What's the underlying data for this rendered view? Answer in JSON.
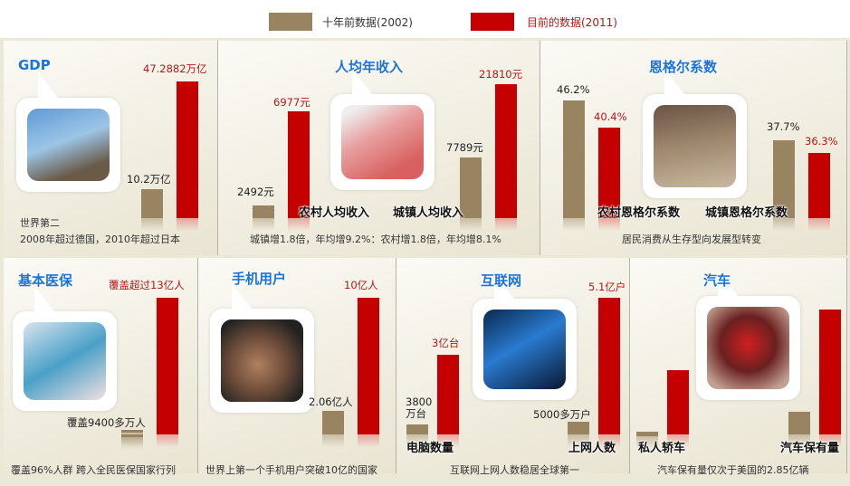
{
  "legend": {
    "before": "十年前数据(2002)",
    "now": "目前的数据(2011)",
    "colors": {
      "before": "#998462",
      "now": "#c40000"
    }
  },
  "chart_data": [
    {
      "type": "bar",
      "title": "GDP",
      "categories": [
        ""
      ],
      "series": [
        {
          "name": "十年前数据(2002)",
          "values": [
            10.2
          ],
          "labels": [
            "10.2万亿"
          ]
        },
        {
          "name": "目前的数据(2011)",
          "values": [
            47.2882
          ],
          "labels": [
            "47.2882万亿"
          ]
        }
      ],
      "caption": [
        "世界第二",
        "2008年超过德国，2010年超过日本"
      ]
    },
    {
      "type": "bar",
      "title": "人均年收入",
      "categories": [
        "农村人均收入",
        "城镇人均收入"
      ],
      "series": [
        {
          "name": "十年前数据(2002)",
          "values": [
            2492,
            7789
          ],
          "labels": [
            "2492元",
            "7789元"
          ]
        },
        {
          "name": "目前的数据(2011)",
          "values": [
            6977,
            21810
          ],
          "labels": [
            "6977元",
            "21810元"
          ]
        }
      ],
      "caption": [
        "城镇增1.8倍，年均增9.2%：农村增1.8倍，年均增8.1%"
      ]
    },
    {
      "type": "bar",
      "title": "恩格尔系数",
      "categories": [
        "农村恩格尔系数",
        "城镇恩格尔系数"
      ],
      "series": [
        {
          "name": "十年前数据(2002)",
          "values": [
            46.2,
            37.7
          ],
          "labels": [
            "46.2%",
            "37.7%"
          ]
        },
        {
          "name": "目前的数据(2011)",
          "values": [
            40.4,
            36.3
          ],
          "labels": [
            "40.4%",
            "36.3%"
          ]
        }
      ],
      "caption": [
        "居民消费从生存型向发展型转变"
      ]
    },
    {
      "type": "bar",
      "title": "基本医保",
      "categories": [
        ""
      ],
      "series": [
        {
          "name": "十年前数据(2002)",
          "values": [
            0.94
          ],
          "labels": [
            "覆盖9400多万人"
          ]
        },
        {
          "name": "目前的数据(2011)",
          "values": [
            13
          ],
          "labels": [
            "覆盖超过13亿人"
          ]
        }
      ],
      "caption": [
        "覆盖96%人群 跨入全民医保国家行列"
      ]
    },
    {
      "type": "bar",
      "title": "手机用户",
      "categories": [
        ""
      ],
      "series": [
        {
          "name": "十年前数据(2002)",
          "values": [
            2.06
          ],
          "labels": [
            "2.06亿人"
          ]
        },
        {
          "name": "目前的数据(2011)",
          "values": [
            10
          ],
          "labels": [
            "10亿人"
          ]
        }
      ],
      "caption": [
        "世界上第一个手机用户突破10亿的国家"
      ]
    },
    {
      "type": "bar",
      "title": "互联网",
      "categories": [
        "电脑数量",
        "上网人数"
      ],
      "series": [
        {
          "name": "十年前数据(2002)",
          "values": [
            0.38,
            0.5
          ],
          "labels": [
            "3800万台",
            "5000多万户"
          ]
        },
        {
          "name": "目前的数据(2011)",
          "values": [
            3,
            5.1
          ],
          "labels": [
            "3亿台",
            "5.1亿户"
          ]
        }
      ],
      "caption": [
        "互联网上网人数稳居全球第一"
      ]
    },
    {
      "type": "bar",
      "title": "汽车",
      "categories": [
        "私人轿车",
        "汽车保有量"
      ],
      "series": [
        {
          "name": "十年前数据(2002)",
          "values": [
            null,
            null
          ],
          "labels": [
            "",
            ""
          ]
        },
        {
          "name": "目前的数据(2011)",
          "values": [
            null,
            null
          ],
          "labels": [
            "",
            ""
          ]
        }
      ],
      "caption": [
        "汽车保有量仅次于美国的2.85亿辆"
      ]
    }
  ]
}
